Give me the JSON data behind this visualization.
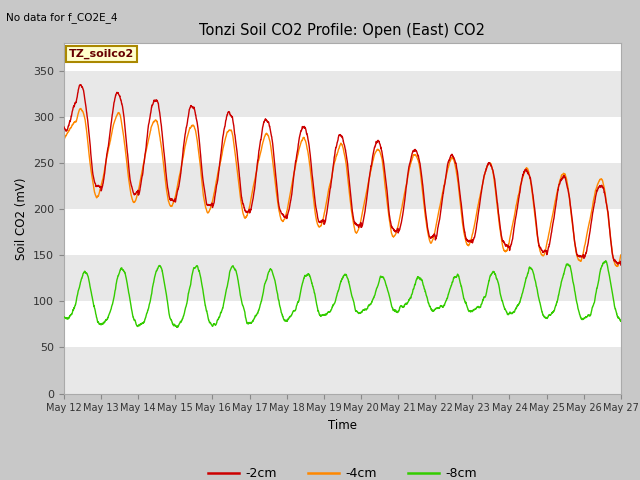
{
  "title": "Tonzi Soil CO2 Profile: Open (East) CO2",
  "no_data_text": "No data for f_CO2E_4",
  "xlabel": "Time",
  "ylabel": "Soil CO2 (mV)",
  "ylim": [
    0,
    380
  ],
  "yticks": [
    0,
    50,
    100,
    150,
    200,
    250,
    300,
    350
  ],
  "xlim": [
    0,
    360
  ],
  "xtick_positions": [
    0,
    24,
    48,
    72,
    96,
    120,
    144,
    168,
    192,
    216,
    240,
    264,
    288,
    312,
    336,
    360
  ],
  "xtick_labels": [
    "May 12",
    "May 13",
    "May 14",
    "May 15",
    "May 16",
    "May 17",
    "May 18",
    "May 19",
    "May 20",
    "May 21",
    "May 22",
    "May 23",
    "May 24",
    "May 25",
    "May 26",
    "May 27"
  ],
  "colors": {
    "2cm": "#cc0000",
    "4cm": "#ff8800",
    "8cm": "#33cc00"
  },
  "legend_box_facecolor": "#ffffcc",
  "legend_box_edgecolor": "#aa8800",
  "legend_box_label": "TZ_soilco2",
  "fig_bg": "#c8c8c8",
  "plot_bg_light": "#e8e8e8",
  "white_band_color": "#ffffff",
  "legend_labels": [
    "-2cm",
    "-4cm",
    "-8cm"
  ],
  "linewidth": 1.0
}
